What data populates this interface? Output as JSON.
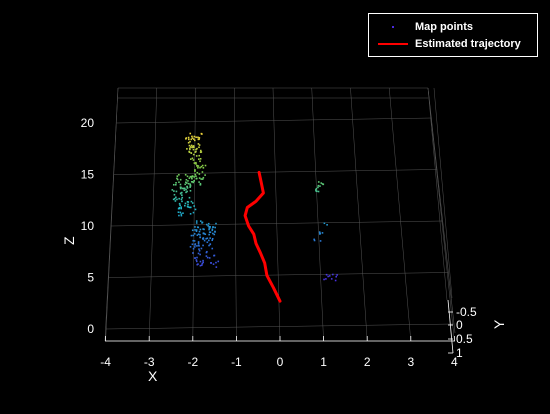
{
  "chart_data": {
    "type": "scatter",
    "view": "3d",
    "x_ticks": [
      "-4",
      "-3",
      "-2",
      "-1",
      "0",
      "1",
      "2",
      "3",
      "4"
    ],
    "y_ticks": [
      "-0.5",
      "0",
      "0.5",
      "1"
    ],
    "z_ticks": [
      "0",
      "5",
      "10",
      "15",
      "20"
    ],
    "xlabel": "X",
    "ylabel": "Y",
    "zlabel": "Z",
    "xlim": [
      -4,
      4
    ],
    "zlim": [
      -1,
      23
    ],
    "grid": true,
    "legend_position": "top-right",
    "legend": {
      "points_label": "Map points",
      "trajectory_label": "Estimated trajectory"
    },
    "colors": {
      "background": "#000000",
      "trajectory": "#ff0000",
      "grid": "#555555",
      "colormap": [
        "#4b2ae0",
        "#2b6fd6",
        "#1fb6c8",
        "#7ccf4a",
        "#f0d23a"
      ]
    },
    "map_point_clusters": [
      {
        "x": [
          -2.1,
          -1.75
        ],
        "z": [
          14,
          19
        ],
        "count": 90
      },
      {
        "x": [
          -2.4,
          -1.95
        ],
        "z": [
          11,
          15
        ],
        "count": 90
      },
      {
        "x": [
          -2.0,
          -1.45
        ],
        "z": [
          6,
          10.5
        ],
        "count": 110
      },
      {
        "x": [
          0.85,
          1.05
        ],
        "z": [
          13.3,
          14.3
        ],
        "count": 12
      },
      {
        "x": [
          0.8,
          1.05
        ],
        "z": [
          8.5,
          10.3
        ],
        "count": 10
      },
      {
        "x": [
          1.0,
          1.35
        ],
        "z": [
          4.7,
          5.3
        ],
        "count": 10
      }
    ],
    "trajectory": {
      "x": [
        0,
        -0.15,
        -0.3,
        -0.35,
        -0.45,
        -0.55,
        -0.6,
        -0.72,
        -0.8,
        -0.75,
        -0.55,
        -0.38,
        -0.42,
        -0.45,
        -0.48
      ],
      "z": [
        2.7,
        4,
        5.2,
        6.4,
        7.4,
        8.3,
        9.2,
        10,
        11,
        11.8,
        12.4,
        13.2,
        14.0,
        14.6,
        15.2
      ]
    }
  }
}
